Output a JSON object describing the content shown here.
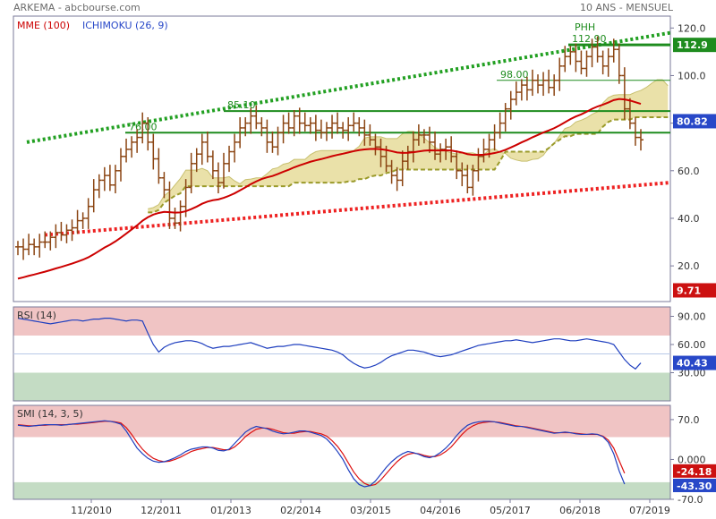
{
  "header": {
    "source": "ARKEMA - abcbourse.com",
    "period": "10 ANS - MENSUEL"
  },
  "colors": {
    "candle": "#8b4513",
    "mme": "#cc0000",
    "cloud_fill": "#e6dc9a",
    "cloud_line": "#9a9a2a",
    "trend_upper": "#22a022",
    "trend_lower": "#ee2222",
    "level": "#1e8c1e",
    "rsi_line": "#1f3fbf",
    "smi_line": "#1f3fbf",
    "smi_signal": "#dd1111",
    "zone_high": "#f0c4c4",
    "zone_low": "#c4dcc4",
    "badge_blue": "#2848c8",
    "badge_green": "#1e8c1e",
    "badge_red": "#cc1111"
  },
  "chart_data": [
    {
      "type": "candlestick",
      "panel": "price",
      "legend": [
        "MME (100)",
        "ICHIMOKU (26, 9)"
      ],
      "ylim": [
        5,
        125
      ],
      "y_ticks": [
        20.0,
        40.0,
        60.0,
        80.0,
        100.0,
        120.0
      ],
      "x_tick_labels": [
        "11/2010",
        "12/2011",
        "01/2013",
        "02/2014",
        "03/2015",
        "04/2016",
        "05/2017",
        "06/2018",
        "07/2019"
      ],
      "close": [
        28,
        27,
        29,
        28,
        30,
        30,
        32,
        34,
        33,
        35,
        36,
        39,
        40,
        45,
        52,
        56,
        58,
        54,
        60,
        66,
        69,
        72,
        74,
        80,
        72,
        65,
        57,
        52,
        40,
        38,
        45,
        53,
        63,
        67,
        72,
        66,
        60,
        55,
        63,
        68,
        72,
        78,
        80,
        83,
        80,
        78,
        72,
        70,
        76,
        80,
        78,
        83,
        80,
        79,
        80,
        77,
        76,
        78,
        80,
        78,
        77,
        79,
        80,
        78,
        75,
        73,
        70,
        66,
        62,
        58,
        56,
        64,
        68,
        73,
        75,
        75,
        72,
        67,
        69,
        70,
        66,
        60,
        58,
        53,
        60,
        66,
        69,
        73,
        76,
        80,
        86,
        90,
        93,
        96,
        94,
        98,
        96,
        98,
        95,
        98,
        104,
        108,
        110,
        106,
        103,
        108,
        112,
        108,
        104,
        108,
        111,
        100,
        86,
        80,
        74,
        73
      ],
      "levels": [
        {
          "value": 76.0,
          "label": "76.00"
        },
        {
          "value": 85.1,
          "label": "85.10"
        },
        {
          "value": 98.0,
          "label": "98.00"
        },
        {
          "value": 112.9,
          "label": "112.90"
        }
      ],
      "annotation": "PHH",
      "badges": [
        {
          "value": 112.9,
          "label": "112.9"
        },
        {
          "value": 80.82,
          "label": "80.82"
        },
        {
          "value": 9.71,
          "label": "9.71"
        }
      ]
    },
    {
      "type": "line",
      "panel": "rsi",
      "title": "RSI (14)",
      "ylim": [
        0,
        100
      ],
      "y_ticks": [
        30.0,
        60.0,
        90.0
      ],
      "zones": {
        "upper": 70,
        "lower": 30,
        "mid": 50
      },
      "values": [
        88,
        87,
        86,
        85,
        84,
        83,
        82,
        83,
        84,
        85,
        86,
        86,
        85,
        86,
        87,
        87,
        88,
        88,
        87,
        86,
        85,
        86,
        86,
        85,
        72,
        60,
        52,
        57,
        60,
        62,
        63,
        64,
        64,
        63,
        61,
        58,
        56,
        57,
        58,
        58,
        59,
        60,
        61,
        62,
        60,
        58,
        56,
        57,
        58,
        58,
        59,
        60,
        60,
        59,
        58,
        57,
        56,
        55,
        54,
        52,
        49,
        44,
        40,
        37,
        35,
        36,
        38,
        41,
        45,
        48,
        50,
        52,
        54,
        54,
        53,
        52,
        50,
        48,
        47,
        48,
        49,
        51,
        53,
        55,
        57,
        59,
        60,
        61,
        62,
        63,
        64,
        64,
        65,
        64,
        63,
        62,
        63,
        64,
        65,
        66,
        66,
        65,
        64,
        64,
        65,
        66,
        65,
        64,
        63,
        62,
        60,
        52,
        44,
        38,
        34,
        40.43
      ],
      "badge": {
        "value": 40.43,
        "label": "40.43"
      }
    },
    {
      "type": "line",
      "panel": "smi",
      "title": "SMI (14, 3, 5)",
      "ylim": [
        -70,
        95
      ],
      "y_ticks": [
        -70.0,
        0.0,
        70.0
      ],
      "zones": {
        "upper": 40,
        "lower": -40
      },
      "series": [
        {
          "name": "SMI",
          "values": [
            60,
            59,
            58,
            59,
            60,
            61,
            61,
            61,
            60,
            61,
            62,
            63,
            64,
            65,
            66,
            67,
            68,
            67,
            65,
            62,
            50,
            35,
            20,
            10,
            2,
            -3,
            -5,
            -4,
            -1,
            3,
            8,
            14,
            18,
            20,
            22,
            22,
            20,
            16,
            15,
            18,
            28,
            38,
            48,
            54,
            58,
            56,
            54,
            50,
            47,
            45,
            46,
            48,
            50,
            50,
            48,
            45,
            42,
            36,
            26,
            14,
            0,
            -18,
            -34,
            -44,
            -48,
            -46,
            -38,
            -26,
            -14,
            -4,
            4,
            10,
            14,
            12,
            9,
            5,
            3,
            6,
            12,
            20,
            30,
            42,
            52,
            60,
            64,
            66,
            67,
            67,
            66,
            64,
            62,
            60,
            58,
            58,
            56,
            54,
            52,
            50,
            48,
            46,
            47,
            48,
            47,
            45,
            44,
            44,
            45,
            44,
            40,
            30,
            10,
            -20,
            -43.3
          ]
        },
        {
          "name": "Signal",
          "values": [
            61,
            60,
            59,
            59,
            60,
            60,
            61,
            61,
            61,
            61,
            62,
            62,
            63,
            64,
            65,
            66,
            67,
            67,
            66,
            64,
            56,
            44,
            30,
            18,
            9,
            2,
            -2,
            -4,
            -3,
            0,
            4,
            9,
            14,
            17,
            19,
            21,
            21,
            19,
            17,
            17,
            22,
            30,
            40,
            47,
            53,
            55,
            55,
            53,
            50,
            47,
            46,
            46,
            48,
            49,
            49,
            47,
            45,
            41,
            33,
            23,
            10,
            -6,
            -22,
            -34,
            -42,
            -46,
            -44,
            -36,
            -25,
            -14,
            -4,
            4,
            9,
            11,
            10,
            7,
            5,
            5,
            8,
            14,
            22,
            33,
            44,
            53,
            59,
            63,
            65,
            66,
            66,
            65,
            63,
            61,
            59,
            58,
            57,
            55,
            53,
            51,
            49,
            47,
            47,
            47,
            47,
            46,
            45,
            44,
            44,
            44,
            41,
            34,
            20,
            -2,
            -24.18
          ]
        }
      ],
      "badges": [
        {
          "value": -24.18,
          "label": "-24.18"
        },
        {
          "value": -43.3,
          "label": "-43.30"
        }
      ]
    }
  ]
}
